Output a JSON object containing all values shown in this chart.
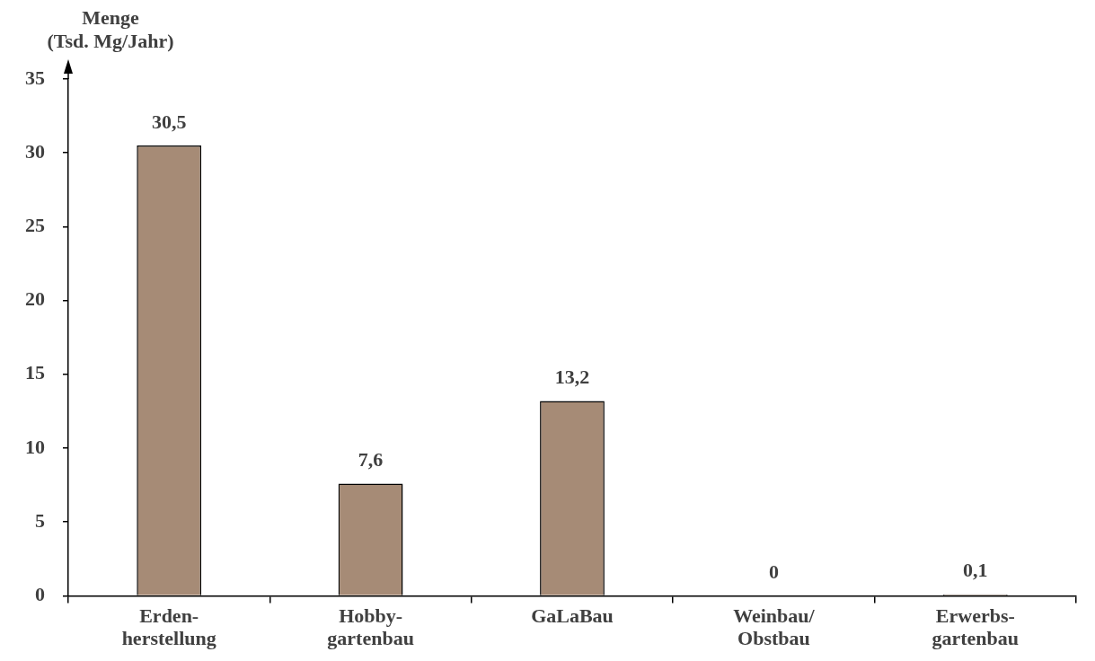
{
  "chart_data": {
    "type": "bar",
    "ylabel": "Menge\n(Tsd. Mg/Jahr)",
    "categories": [
      "Erden-\nherstellung",
      "Hobby-\ngartenbau",
      "GaLaBau",
      "Weinbau/\nObstbau",
      "Erwerbs-\ngartenbau"
    ],
    "values": [
      30.5,
      7.6,
      13.2,
      0,
      0.1
    ],
    "value_labels": [
      "30,5",
      "7,6",
      "13,2",
      "0",
      "0,1"
    ],
    "color": "#a68b76",
    "ylim": [
      0,
      35
    ],
    "yticks": [
      0,
      5,
      10,
      15,
      20,
      25,
      30,
      35
    ],
    "grid": false,
    "legend": false
  }
}
